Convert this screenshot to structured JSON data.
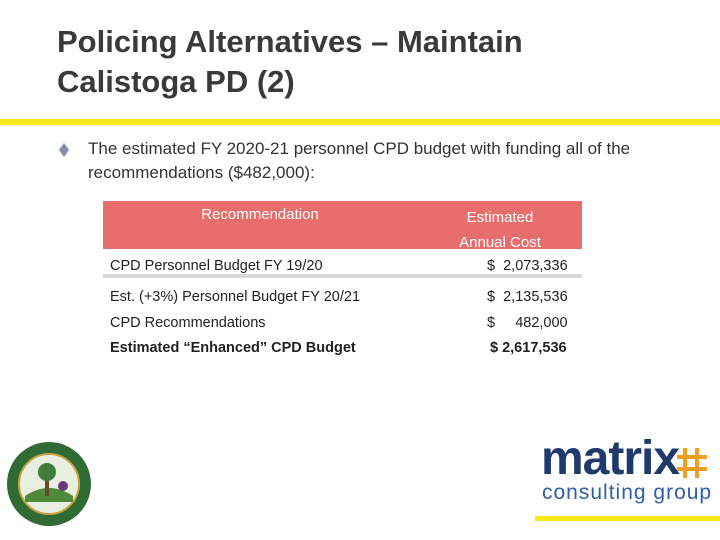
{
  "header": {
    "title": "Policing Alternatives – Maintain Calistoga PD (2)"
  },
  "bullet": "The estimated FY 2020-21 personnel CPD budget with funding all of the recommendations ($482,000):",
  "table": {
    "headers": [
      "Recommendation",
      "Estimated Annual Cost"
    ],
    "rows": [
      [
        "CPD Personnel Budget FY 19/20",
        "$  2,073,336"
      ],
      [
        "Est. (+3%) Personnel Budget FY 20/21",
        "$  2,135,536"
      ],
      [
        "CPD Recommendations",
        "$     482,000"
      ],
      [
        "Estimated “Enhanced” CPD Budget",
        "$ 2,617,536"
      ]
    ]
  },
  "logo": {
    "name": "matrix",
    "tagline": "consulting group"
  }
}
